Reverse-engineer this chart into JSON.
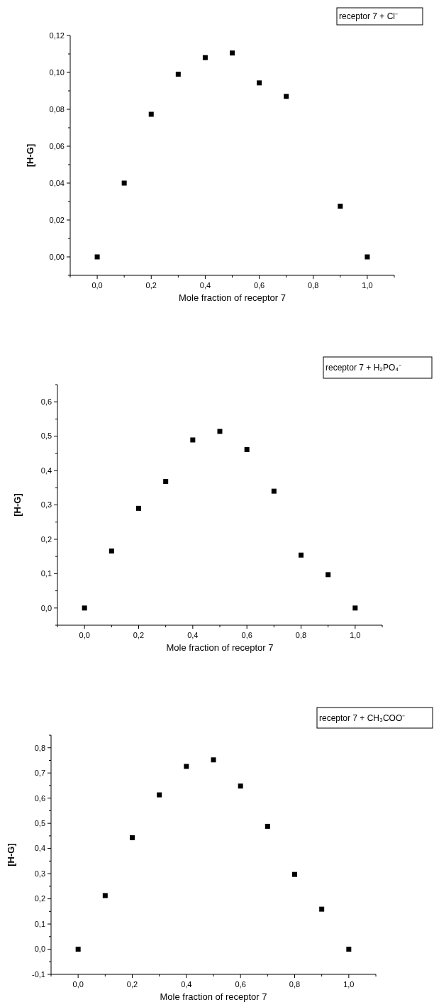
{
  "chart_data": [
    {
      "type": "scatter",
      "annotations": [
        "receptor 7 + Cl⁻"
      ],
      "xlabel": "Mole fraction of receptor 7",
      "ylabel": "[H-G]",
      "marker": "square",
      "series": [
        {
          "color": "#000000",
          "x": [
            0,
            0.1,
            0.2,
            0.3,
            0.4,
            0.5,
            0.6,
            0.7,
            0.9,
            1.0
          ],
          "values": [
            0,
            0.04,
            0.0773,
            0.099,
            0.108,
            0.1105,
            0.0943,
            0.087,
            0.0275,
            0
          ]
        }
      ],
      "xlim": [
        -0.1,
        1.1
      ],
      "xticks": [
        {
          "value": -0.1,
          "label": null
        },
        {
          "value": 0,
          "label": "0,0"
        },
        {
          "value": 0.1,
          "label": null
        },
        {
          "value": 0.2,
          "label": "0,2"
        },
        {
          "value": 0.3,
          "label": null
        },
        {
          "value": 0.4,
          "label": "0,4"
        },
        {
          "value": 0.5,
          "label": null
        },
        {
          "value": 0.6,
          "label": "0,6"
        },
        {
          "value": 0.7,
          "label": null
        },
        {
          "value": 0.8,
          "label": "0,8"
        },
        {
          "value": 0.9,
          "label": null
        },
        {
          "value": 1.0,
          "label": "1,0"
        },
        {
          "value": 1.1,
          "label": null
        }
      ],
      "ylim": [
        -0.01,
        0.12
      ],
      "yticks": [
        {
          "value": -0.01,
          "label": null
        },
        {
          "value": 0,
          "label": "0,00"
        },
        {
          "value": 0.01,
          "label": null
        },
        {
          "value": 0.02,
          "label": "0,02"
        },
        {
          "value": 0.03,
          "label": null
        },
        {
          "value": 0.04,
          "label": "0,04"
        },
        {
          "value": 0.05,
          "label": null
        },
        {
          "value": 0.06,
          "label": "0,06"
        },
        {
          "value": 0.07,
          "label": null
        },
        {
          "value": 0.08,
          "label": "0,08"
        },
        {
          "value": 0.09,
          "label": null
        },
        {
          "value": 0.1,
          "label": "0,10"
        },
        {
          "value": 0.11,
          "label": null
        },
        {
          "value": 0.12,
          "label": "0,12"
        }
      ]
    },
    {
      "type": "scatter",
      "annotations": [
        "receptor 7 + H₂PO₄⁻"
      ],
      "xlabel": "Mole fraction of receptor 7",
      "ylabel": "[H-G]",
      "marker": "square",
      "series": [
        {
          "color": "#000000",
          "x": [
            0,
            0.1,
            0.2,
            0.3,
            0.4,
            0.5,
            0.6,
            0.7,
            0.8,
            0.9,
            1.0
          ],
          "values": [
            0,
            0.166,
            0.29,
            0.368,
            0.489,
            0.514,
            0.461,
            0.34,
            0.154,
            0.097,
            0
          ]
        }
      ],
      "xlim": [
        -0.1,
        1.1
      ],
      "xticks": [
        {
          "value": -0.1,
          "label": null
        },
        {
          "value": 0,
          "label": "0,0"
        },
        {
          "value": 0.1,
          "label": null
        },
        {
          "value": 0.2,
          "label": "0,2"
        },
        {
          "value": 0.3,
          "label": null
        },
        {
          "value": 0.4,
          "label": "0,4"
        },
        {
          "value": 0.5,
          "label": null
        },
        {
          "value": 0.6,
          "label": "0,6"
        },
        {
          "value": 0.7,
          "label": null
        },
        {
          "value": 0.8,
          "label": "0,8"
        },
        {
          "value": 0.9,
          "label": null
        },
        {
          "value": 1.0,
          "label": "1,0"
        },
        {
          "value": 1.1,
          "label": null
        }
      ],
      "ylim": [
        -0.05,
        0.65
      ],
      "yticks": [
        {
          "value": -0.05,
          "label": null
        },
        {
          "value": 0,
          "label": "0,0"
        },
        {
          "value": 0.05,
          "label": null
        },
        {
          "value": 0.1,
          "label": "0,1"
        },
        {
          "value": 0.15,
          "label": null
        },
        {
          "value": 0.2,
          "label": "0,2"
        },
        {
          "value": 0.25,
          "label": null
        },
        {
          "value": 0.3,
          "label": "0,3"
        },
        {
          "value": 0.35,
          "label": null
        },
        {
          "value": 0.4,
          "label": "0,4"
        },
        {
          "value": 0.45,
          "label": null
        },
        {
          "value": 0.5,
          "label": "0,5"
        },
        {
          "value": 0.55,
          "label": null
        },
        {
          "value": 0.6,
          "label": "0,6"
        },
        {
          "value": 0.65,
          "label": null
        }
      ]
    },
    {
      "type": "scatter",
      "annotations": [
        "receptor 7 + CH₃COO⁻"
      ],
      "xlabel": "Mole fraction of receptor 7",
      "ylabel": "[H-G]",
      "marker": "square",
      "series": [
        {
          "color": "#000000",
          "x": [
            0,
            0.1,
            0.2,
            0.3,
            0.4,
            0.5,
            0.6,
            0.7,
            0.8,
            0.9,
            1.0
          ],
          "values": [
            0,
            0.213,
            0.443,
            0.613,
            0.726,
            0.752,
            0.648,
            0.488,
            0.297,
            0.159,
            0
          ]
        }
      ],
      "xlim": [
        -0.1,
        1.1
      ],
      "xticks": [
        {
          "value": -0.1,
          "label": null
        },
        {
          "value": 0,
          "label": "0,0"
        },
        {
          "value": 0.1,
          "label": null
        },
        {
          "value": 0.2,
          "label": "0,2"
        },
        {
          "value": 0.3,
          "label": null
        },
        {
          "value": 0.4,
          "label": "0,4"
        },
        {
          "value": 0.5,
          "label": null
        },
        {
          "value": 0.6,
          "label": "0,6"
        },
        {
          "value": 0.7,
          "label": null
        },
        {
          "value": 0.8,
          "label": "0,8"
        },
        {
          "value": 0.9,
          "label": null
        },
        {
          "value": 1.0,
          "label": "1,0"
        },
        {
          "value": 1.1,
          "label": null
        }
      ],
      "ylim": [
        -0.1,
        0.85
      ],
      "yticks": [
        {
          "value": -0.1,
          "label": "-0,1"
        },
        {
          "value": -0.05,
          "label": null
        },
        {
          "value": 0,
          "label": "0,0"
        },
        {
          "value": 0.05,
          "label": null
        },
        {
          "value": 0.1,
          "label": "0,1"
        },
        {
          "value": 0.15,
          "label": null
        },
        {
          "value": 0.2,
          "label": "0,2"
        },
        {
          "value": 0.25,
          "label": null
        },
        {
          "value": 0.3,
          "label": "0,3"
        },
        {
          "value": 0.35,
          "label": null
        },
        {
          "value": 0.4,
          "label": "0,4"
        },
        {
          "value": 0.45,
          "label": null
        },
        {
          "value": 0.5,
          "label": "0,5"
        },
        {
          "value": 0.55,
          "label": null
        },
        {
          "value": 0.6,
          "label": "0,6"
        },
        {
          "value": 0.65,
          "label": null
        },
        {
          "value": 0.7,
          "label": "0,7"
        },
        {
          "value": 0.75,
          "label": null
        },
        {
          "value": 0.8,
          "label": "0,8"
        },
        {
          "value": 0.85,
          "label": null
        }
      ]
    }
  ]
}
